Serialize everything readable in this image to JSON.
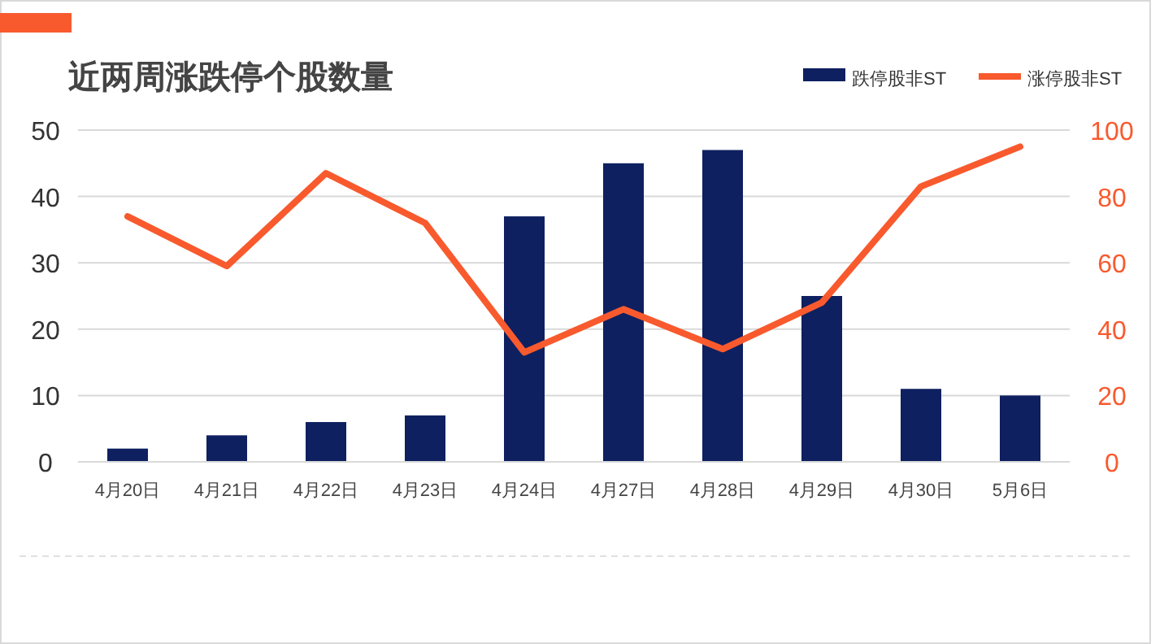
{
  "chart_data": {
    "type": "bar",
    "title": "近两周涨跌停个股数量",
    "categories": [
      "4月20日",
      "4月21日",
      "4月22日",
      "4月23日",
      "4月24日",
      "4月27日",
      "4月28日",
      "4月29日",
      "4月30日",
      "5月6日"
    ],
    "series": [
      {
        "name": "跌停股非ST",
        "color": "#0e2060",
        "values": [
          2,
          4,
          6,
          7,
          37,
          45,
          47,
          25,
          11,
          10
        ]
      },
      {
        "name": "涨停股非ST",
        "type": "line",
        "axis": "y2",
        "color": "#f85a2e",
        "values": [
          74,
          59,
          87,
          72,
          33,
          46,
          34,
          48,
          83,
          95
        ]
      }
    ],
    "ylim": [
      0,
      50
    ],
    "yticks": [
      0,
      10,
      20,
      30,
      40,
      50
    ],
    "y2lim": [
      0,
      100
    ],
    "y2ticks": [
      0,
      20,
      40,
      60,
      80,
      100
    ],
    "grid": "y",
    "legend": "top right",
    "marker": "none",
    "line_style": "solid"
  }
}
